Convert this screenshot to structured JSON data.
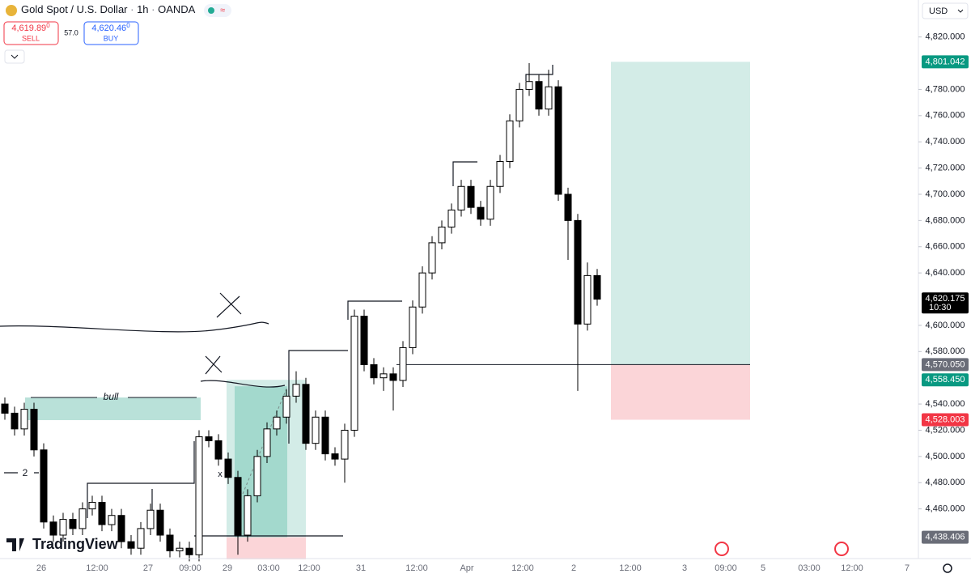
{
  "header": {
    "symbol": "Gold Spot / U.S. Dollar",
    "interval": "1h",
    "broker": "OANDA",
    "sell": {
      "price": "4,619.89",
      "fraction": "0",
      "label": "SELL"
    },
    "spread": "57.0",
    "buy": {
      "price": "4,620.46",
      "fraction": "0",
      "label": "BUY"
    },
    "currency": "USD"
  },
  "logo": "TradingView",
  "annotations": {
    "zone": "bull",
    "count": "2",
    "mark": "x"
  },
  "chart_data": {
    "type": "candlestick",
    "open": [
      4540,
      4533,
      4521,
      4536,
      4505,
      4450,
      4440,
      4452,
      4445,
      4460,
      4465,
      4448,
      4455,
      4435,
      4430,
      4445,
      4459,
      4440,
      4428,
      4430,
      4425,
      4515,
      4512,
      4498,
      4484,
      4440,
      4470,
      4500,
      4521,
      4530,
      4546,
      4555,
      4510,
      4530,
      4502,
      4498,
      4520,
      4607,
      4570,
      4560,
      4563,
      4558,
      4583,
      4614,
      4640,
      4663,
      4675,
      4688,
      4706,
      4690,
      4681,
      4706,
      4725,
      4756,
      4780,
      4786,
      4765,
      4782,
      4700,
      4680,
      4601,
      4638
    ],
    "high": [
      4545,
      4538,
      4541,
      4541,
      4510,
      4455,
      4457,
      4457,
      4465,
      4470,
      4470,
      4460,
      4460,
      4440,
      4450,
      4464,
      4464,
      4445,
      4435,
      4435,
      4520,
      4520,
      4517,
      4503,
      4489,
      4475,
      4505,
      4526,
      4535,
      4551,
      4565,
      4560,
      4535,
      4535,
      4507,
      4525,
      4612,
      4612,
      4575,
      4568,
      4568,
      4588,
      4619,
      4645,
      4668,
      4680,
      4693,
      4711,
      4711,
      4695,
      4711,
      4730,
      4761,
      4785,
      4800,
      4791,
      4795,
      4787,
      4705,
      4685,
      4648,
      4643
    ],
    "low": [
      4528,
      4516,
      4516,
      4500,
      4445,
      4435,
      4435,
      4440,
      4440,
      4455,
      4443,
      4443,
      4430,
      4425,
      4425,
      4440,
      4435,
      4423,
      4423,
      4420,
      4420,
      4507,
      4493,
      4479,
      4425,
      4435,
      4465,
      4495,
      4516,
      4525,
      4541,
      4505,
      4505,
      4497,
      4493,
      4480,
      4515,
      4565,
      4555,
      4550,
      4535,
      4553,
      4578,
      4609,
      4635,
      4658,
      4670,
      4683,
      4685,
      4676,
      4676,
      4701,
      4720,
      4751,
      4775,
      4760,
      4760,
      4695,
      4650,
      4550,
      4596,
      4615
    ],
    "close": [
      4533,
      4521,
      4536,
      4505,
      4450,
      4440,
      4452,
      4445,
      4460,
      4465,
      4448,
      4455,
      4435,
      4430,
      4445,
      4459,
      4440,
      4428,
      4430,
      4425,
      4515,
      4512,
      4498,
      4484,
      4440,
      4470,
      4500,
      4521,
      4530,
      4546,
      4555,
      4510,
      4530,
      4502,
      4498,
      4520,
      4607,
      4570,
      4560,
      4563,
      4558,
      4583,
      4614,
      4640,
      4663,
      4675,
      4688,
      4706,
      4690,
      4681,
      4706,
      4725,
      4756,
      4780,
      4786,
      4765,
      4782,
      4700,
      4680,
      4601,
      4638,
      4620
    ],
    "up_color": "#ffffff",
    "down_color": "#000000",
    "ylim": [
      4422.1,
      4848.2
    ],
    "yticks": [
      {
        "value": 4460,
        "label": "4,460.000"
      },
      {
        "value": 4480,
        "label": "4,480.000"
      },
      {
        "value": 4500,
        "label": "4,500.000"
      },
      {
        "value": 4520,
        "label": "4,520.000"
      },
      {
        "value": 4540,
        "label": "4,540.000"
      },
      {
        "value": 4580,
        "label": "4,580.000"
      },
      {
        "value": 4600,
        "label": "4,600.000"
      },
      {
        "value": 4640,
        "label": "4,640.000"
      },
      {
        "value": 4660,
        "label": "4,660.000"
      },
      {
        "value": 4680,
        "label": "4,680.000"
      },
      {
        "value": 4700,
        "label": "4,700.000"
      },
      {
        "value": 4720,
        "label": "4,720.000"
      },
      {
        "value": 4740,
        "label": "4,740.000"
      },
      {
        "value": 4760,
        "label": "4,760.000"
      },
      {
        "value": 4780,
        "label": "4,780.000"
      },
      {
        "value": 4820,
        "label": "4,820.000"
      }
    ],
    "x_labels": [
      "26",
      "12:00",
      "27",
      "09:00",
      "29",
      "03:00",
      "12:00",
      "31",
      "12:00",
      "Apr",
      "12:00",
      "2",
      "12:00",
      "3",
      "09:00",
      "5",
      "03:00",
      "12:00",
      "7"
    ],
    "price_tags": [
      {
        "value": 4801.042,
        "label": "4,801.042",
        "color": "#089981"
      },
      {
        "value": 4620.175,
        "label": "4,620.175",
        "time": "10:30",
        "color": "#000000"
      },
      {
        "value": 4570.05,
        "label": "4,570.050",
        "color": "#6a6d78"
      },
      {
        "value": 4558.45,
        "label": "4,558.450",
        "color": "#089981"
      },
      {
        "value": 4528.003,
        "label": "4,528.003",
        "color": "#f23645"
      },
      {
        "value": 4438.406,
        "label": "4,438.406",
        "color": "#6a6d78"
      }
    ],
    "positions": [
      {
        "target": 4801.042,
        "entry": 4570.05,
        "stop": 4528.003
      },
      {
        "target": 4558.45,
        "entry": 4438.406,
        "stop": 4421.5
      }
    ],
    "profit_color": "#d3ece7",
    "loss_color": "#fbd5d8"
  }
}
